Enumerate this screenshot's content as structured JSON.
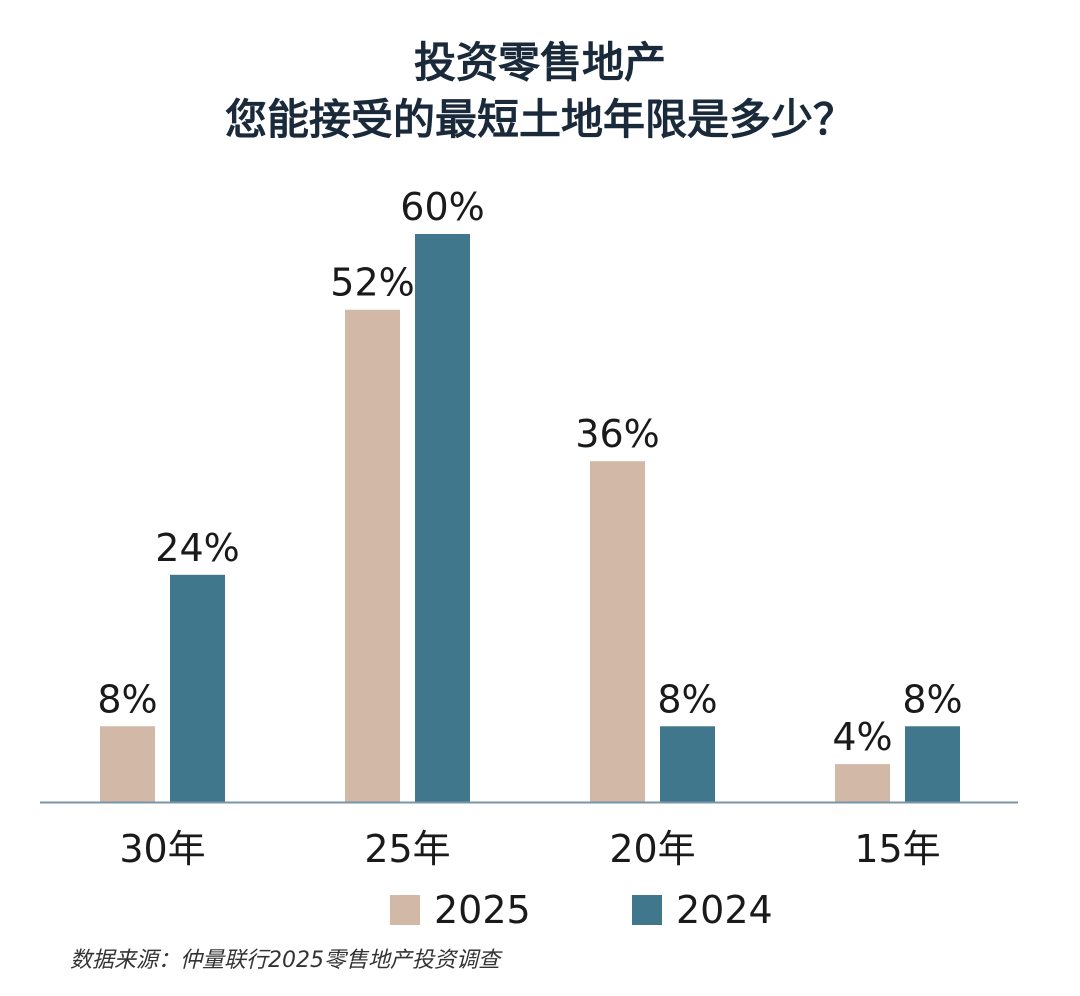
{
  "chart_data": {
    "type": "bar",
    "title_lines": [
      "投资零售地产",
      "您能接受的最短土地年限是多少？"
    ],
    "categories": [
      "30年",
      "25年",
      "20年",
      "15年"
    ],
    "series": [
      {
        "name": "2025",
        "values": [
          8,
          52,
          36,
          4
        ],
        "labels": [
          "8%",
          "52%",
          "36%",
          "4%"
        ],
        "color": "#d2b8a6"
      },
      {
        "name": "2024",
        "values": [
          24,
          60,
          8,
          8
        ],
        "labels": [
          "24%",
          "60%",
          "8%",
          "8%"
        ],
        "color": "#41778c"
      }
    ],
    "ylim": [
      0,
      60
    ],
    "grid": false,
    "legend_position": "bottom",
    "axis_color": "#7a95a8",
    "source": "数据来源：仲量联行2025零售地产投资调查"
  }
}
